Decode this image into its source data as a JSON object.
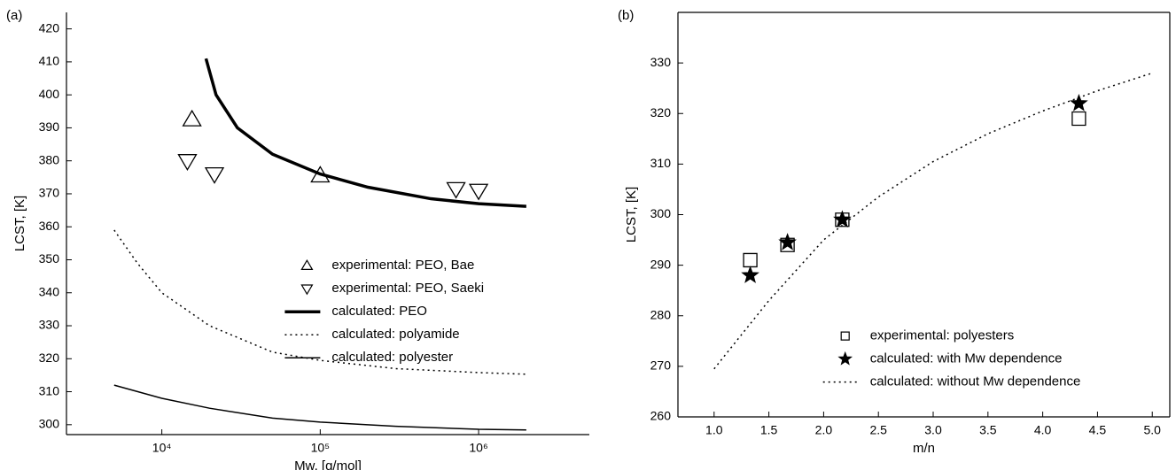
{
  "chart_data": [
    {
      "type": "scatter",
      "panel": "(a)",
      "xlabel": "Mw, [g/mol]",
      "ylabel": "LCST, [K]",
      "xscale": "log",
      "xlim": [
        2500,
        5000000
      ],
      "xticks": [
        {
          "value": 10000,
          "label": "10⁴"
        },
        {
          "value": 100000,
          "label": "10⁵"
        },
        {
          "value": 1000000,
          "label": "10⁶"
        }
      ],
      "ylim": [
        297,
        425
      ],
      "yticks": [
        300,
        310,
        320,
        330,
        340,
        350,
        360,
        370,
        380,
        390,
        400,
        410,
        420
      ],
      "legend": "center right",
      "frame": "open",
      "series": [
        {
          "name": "experimental: PEO, Bae",
          "color": "#000000",
          "marker": "triangle-up",
          "x": [
            15500,
            100000
          ],
          "values": [
            392.5,
            375.5
          ]
        },
        {
          "name": "experimental: PEO, Saeki",
          "color": "#000000",
          "marker": "triangle-down",
          "x": [
            14500,
            21500,
            720000,
            1000000
          ],
          "values": [
            380,
            376,
            371.5,
            371
          ]
        },
        {
          "name": "calculated: PEO",
          "color": "#000000",
          "line": "solid",
          "linewidth": 3.5,
          "x": [
            19000,
            22000,
            30000,
            50000,
            100000,
            200000,
            500000,
            1000000,
            2000000
          ],
          "values": [
            411,
            400,
            390,
            382,
            376,
            372,
            368.5,
            367,
            366.2
          ]
        },
        {
          "name": "calculated: polyamide",
          "color": "#000000",
          "line": "dotted",
          "linewidth": 1.5,
          "x": [
            5000,
            7000,
            10000,
            20000,
            50000,
            100000,
            300000,
            1000000,
            2000000
          ],
          "values": [
            359,
            349,
            340,
            330,
            322,
            319.5,
            317,
            315.8,
            315.3
          ]
        },
        {
          "name": "calculated: polyester",
          "color": "#000000",
          "line": "solid",
          "linewidth": 1.5,
          "x": [
            5000,
            10000,
            20000,
            50000,
            100000,
            300000,
            1000000,
            2000000
          ],
          "values": [
            312,
            308,
            305,
            302,
            300.8,
            299.5,
            298.6,
            298.4
          ]
        }
      ]
    },
    {
      "type": "scatter",
      "panel": "(b)",
      "xlabel": "m/n",
      "ylabel": "LCST, [K]",
      "xscale": "linear",
      "xlim": [
        0.67,
        5.16
      ],
      "xticks": [
        {
          "value": 1,
          "label": "1.0"
        },
        1.5,
        {
          "value": 2,
          "label": "2.0"
        },
        2.5,
        {
          "value": 3,
          "label": "3.0"
        },
        3.5,
        {
          "value": 4,
          "label": "4.0"
        },
        4.5,
        {
          "value": 5,
          "label": "5.0"
        }
      ],
      "ylim": [
        260,
        340
      ],
      "yticks": [
        260,
        270,
        280,
        290,
        300,
        310,
        320,
        330
      ],
      "legend": "lower right",
      "frame": "box",
      "series": [
        {
          "name": "experimental: polyesters",
          "color": "#000000",
          "marker": "square",
          "x": [
            1.33,
            1.67,
            2.17,
            4.33
          ],
          "values": [
            291,
            294,
            299,
            319
          ]
        },
        {
          "name": "calculated: with Mw dependence",
          "color": "#000000",
          "marker": "star",
          "x": [
            1.33,
            1.67,
            2.17,
            4.33
          ],
          "values": [
            288,
            294.5,
            299,
            322
          ]
        },
        {
          "name": "calculated: without Mw dependence",
          "color": "#000000",
          "line": "dotted",
          "linewidth": 1.5,
          "x": [
            1.0,
            1.5,
            2.0,
            2.5,
            3.0,
            3.5,
            4.0,
            4.5,
            5.0
          ],
          "values": [
            269.5,
            283,
            295,
            303.5,
            310.5,
            316,
            320.5,
            324.5,
            328
          ]
        }
      ]
    }
  ]
}
